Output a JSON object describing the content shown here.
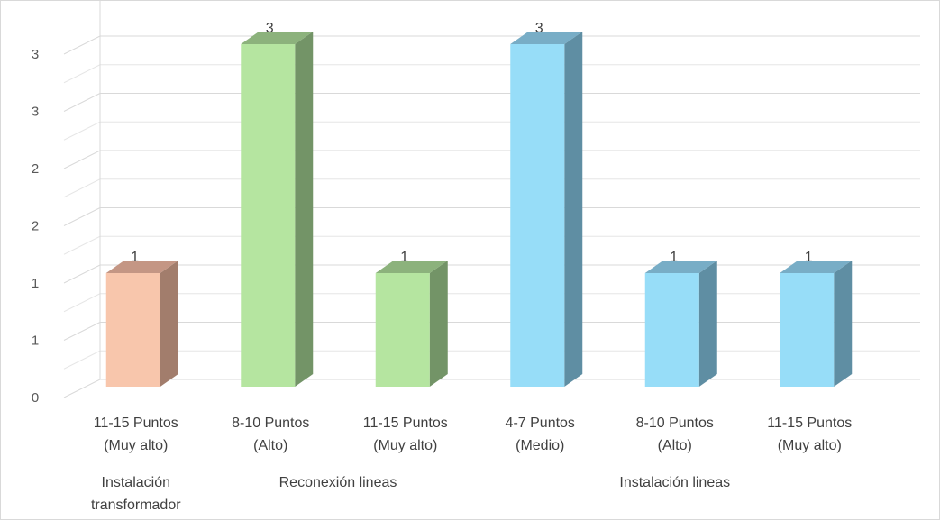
{
  "chart_data": {
    "type": "bar",
    "style": "3d-column",
    "title": "",
    "xlabel": "",
    "ylabel": "",
    "ylim": [
      0,
      3.5
    ],
    "y_tick_values": [
      0,
      0.5,
      1,
      1.5,
      2,
      2.5,
      3
    ],
    "y_tick_labels": [
      "0",
      "1",
      "1",
      "2",
      "2",
      "3",
      "3"
    ],
    "grid": true,
    "legend": "none",
    "categories": [
      {
        "line1": "11-15 Puntos",
        "line2": "(Muy alto)"
      },
      {
        "line1": "8-10 Puntos",
        "line2": "(Alto)"
      },
      {
        "line1": "11-15 Puntos",
        "line2": "(Muy alto)"
      },
      {
        "line1": "4-7 Puntos",
        "line2": "(Medio)"
      },
      {
        "line1": "8-10 Puntos",
        "line2": "(Alto)"
      },
      {
        "line1": "11-15 Puntos",
        "line2": "(Muy alto)"
      }
    ],
    "values": [
      1,
      3,
      1,
      3,
      1,
      1
    ],
    "data_labels": [
      "1",
      "3",
      "1",
      "3",
      "1",
      "1"
    ],
    "groups": [
      {
        "lines": [
          "Instalación",
          "transformador"
        ],
        "category_indexes": [
          0
        ]
      },
      {
        "lines": [
          "Reconexión lineas"
        ],
        "category_indexes": [
          1,
          2
        ]
      },
      {
        "lines": [
          "Instalación lineas"
        ],
        "category_indexes": [
          3,
          4,
          5
        ]
      }
    ],
    "bar_colors": [
      {
        "front": "#F8C6AC",
        "side": "#A27D6C",
        "top": "#C49684"
      },
      {
        "front": "#B5E5A0",
        "side": "#739467",
        "top": "#8CB27C"
      },
      {
        "front": "#B5E5A0",
        "side": "#739467",
        "top": "#8CB27C"
      },
      {
        "front": "#97DDF8",
        "side": "#5F8EA3",
        "top": "#78ADC6"
      },
      {
        "front": "#97DDF8",
        "side": "#5F8EA3",
        "top": "#78ADC6"
      },
      {
        "front": "#97DDF8",
        "side": "#5F8EA3",
        "top": "#78ADC6"
      }
    ]
  }
}
